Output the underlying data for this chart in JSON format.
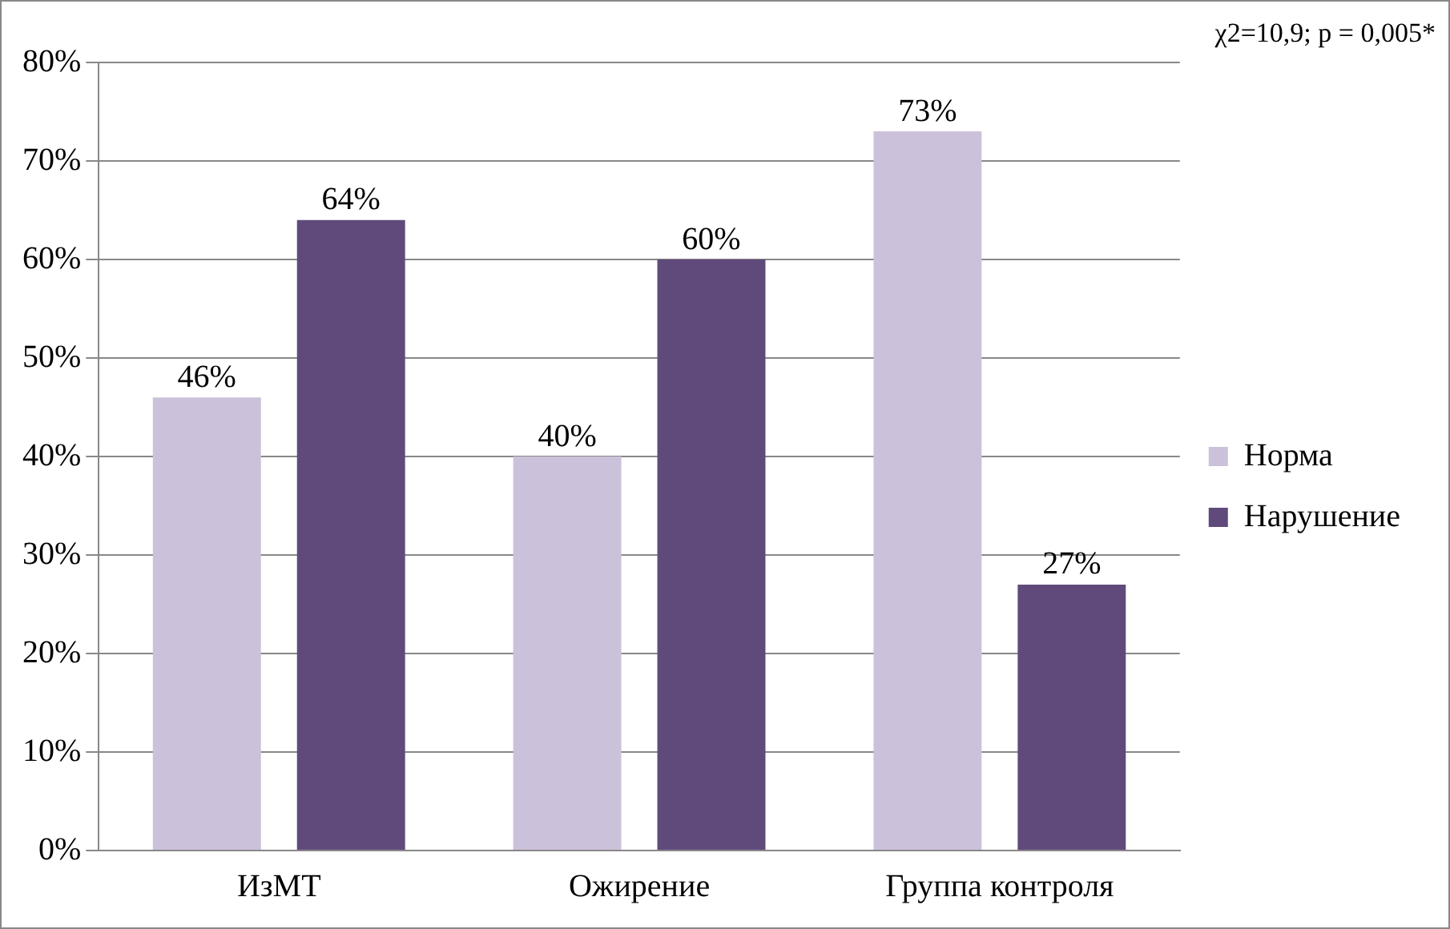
{
  "chart_data": {
    "type": "bar",
    "categories": [
      "ИзМТ",
      "Ожирение",
      "Группа контроля"
    ],
    "series": [
      {
        "name": "Норма",
        "color": "#ccc1da",
        "values": [
          46,
          40,
          73
        ],
        "value_labels": [
          "46%",
          "40%",
          "73%"
        ]
      },
      {
        "name": "Нарушение",
        "color": "#604a7b",
        "values": [
          64,
          60,
          27
        ],
        "value_labels": [
          "64%",
          "60%",
          "27%"
        ]
      }
    ],
    "ylim": [
      0,
      80
    ],
    "yticks": [
      {
        "value": 0,
        "label": "0%"
      },
      {
        "value": 10,
        "label": "10%"
      },
      {
        "value": 20,
        "label": "20%"
      },
      {
        "value": 30,
        "label": "30%"
      },
      {
        "value": 40,
        "label": "40%"
      },
      {
        "value": 50,
        "label": "50%"
      },
      {
        "value": 60,
        "label": "60%"
      },
      {
        "value": 70,
        "label": "70%"
      },
      {
        "value": 80,
        "label": "80%"
      }
    ],
    "grid": "y",
    "legend": "right",
    "annotations": [
      "χ2=10,9; p = 0,005*"
    ]
  }
}
